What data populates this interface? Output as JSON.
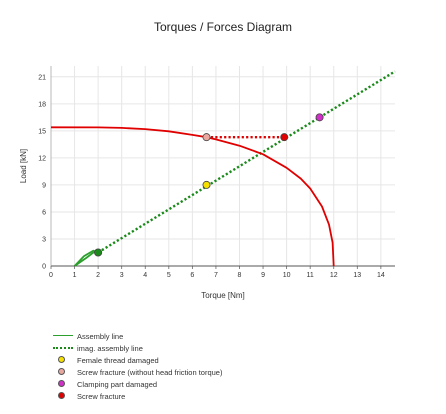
{
  "chart_data": {
    "type": "line",
    "title": "Torques / Forces Diagram",
    "xlabel": "Torque [Nm]",
    "ylabel": "Load [kN]",
    "xlim": [
      0,
      14.6
    ],
    "ylim": [
      0,
      22.2
    ],
    "xticks": [
      "0",
      "1",
      "2",
      "3",
      "4",
      "5",
      "6",
      "7",
      "8",
      "9",
      "10",
      "11",
      "12",
      "13",
      "14"
    ],
    "yticks": [
      "0",
      "3",
      "6",
      "9",
      "12",
      "15",
      "18",
      "21"
    ],
    "grid": true,
    "legend_position": "bottom-left",
    "series": [
      {
        "name": "Assembly line",
        "style": "solid",
        "color": "#2ca02c",
        "points": [
          [
            1.0,
            0
          ],
          [
            1.5,
            0.9
          ],
          [
            1.8,
            1.5
          ],
          [
            2.0,
            1.5
          ]
        ],
        "points_alt": [
          [
            1.0,
            0
          ],
          [
            1.4,
            1.1
          ],
          [
            1.8,
            1.7
          ],
          [
            2.0,
            1.5
          ]
        ]
      },
      {
        "name": "imag. assembly line",
        "style": "dotted",
        "color": "#1a8a1a",
        "points": [
          [
            2.0,
            1.5
          ],
          [
            14.6,
            21.6
          ]
        ]
      },
      {
        "name": "",
        "style": "solid",
        "color": "#e00000",
        "points": [
          [
            0,
            15.4
          ],
          [
            2,
            15.38
          ],
          [
            3,
            15.33
          ],
          [
            4,
            15.2
          ],
          [
            5,
            14.95
          ],
          [
            6,
            14.55
          ],
          [
            6.6,
            14.3
          ],
          [
            7,
            14.05
          ],
          [
            8,
            13.35
          ],
          [
            9,
            12.4
          ],
          [
            10,
            10.9
          ],
          [
            10.6,
            9.7
          ],
          [
            11,
            8.6
          ],
          [
            11.5,
            6.6
          ],
          [
            11.8,
            4.6
          ],
          [
            11.95,
            2.6
          ],
          [
            12.0,
            0
          ]
        ]
      },
      {
        "name": "",
        "style": "dotted",
        "color": "#e00000",
        "points": [
          [
            6.6,
            14.3
          ],
          [
            9.9,
            14.3
          ]
        ]
      }
    ],
    "markers": [
      {
        "name": "Female thread damaged",
        "x": 6.6,
        "y": 9.0,
        "color": "#f5e000"
      },
      {
        "name": "Screw fracture (without head friction torque)",
        "x": 6.6,
        "y": 14.3,
        "color": "#e8a8a0"
      },
      {
        "name": "Clamping part damaged",
        "x": 11.4,
        "y": 16.5,
        "color": "#d030c8"
      },
      {
        "name": "Screw fracture",
        "x": 9.9,
        "y": 14.3,
        "color": "#e00000"
      },
      {
        "name": "",
        "x": 2.0,
        "y": 1.5,
        "color": "#1a8a1a"
      }
    ]
  },
  "legend": {
    "items": [
      {
        "label": "Assembly line",
        "kind": "line",
        "color": "#2ca02c",
        "style": "solid"
      },
      {
        "label": "imag. assembly line",
        "kind": "line",
        "color": "#1a8a1a",
        "style": "dotted"
      },
      {
        "label": "Female thread damaged",
        "kind": "dot",
        "color": "#f5e000"
      },
      {
        "label": "Screw fracture (without head friction torque)",
        "kind": "dot",
        "color": "#e8a8a0"
      },
      {
        "label": "Clamping part damaged",
        "kind": "dot",
        "color": "#d030c8"
      },
      {
        "label": "Screw fracture",
        "kind": "dot",
        "color": "#e00000"
      }
    ]
  }
}
